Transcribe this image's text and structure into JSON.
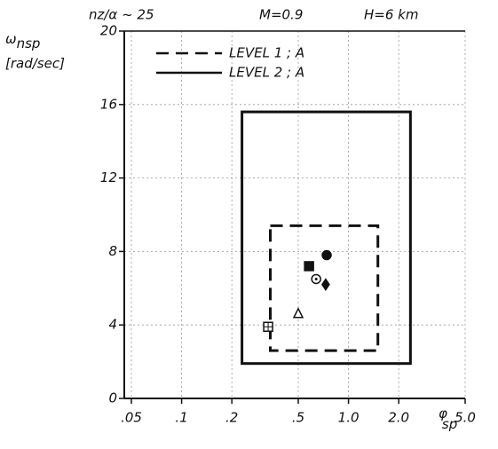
{
  "chart_data": {
    "type": "scatter",
    "title_parts": [
      "nz/α ~ 25",
      "M=0.9",
      "H=6  km"
    ],
    "y_label": {
      "symbol": "ω",
      "subscript": "nsp",
      "unit": "[rad/sec]"
    },
    "x_label": {
      "symbol": "φ",
      "subscript": "sp"
    },
    "xscale": "log",
    "xlim": [
      0.05,
      5.0
    ],
    "ylim": [
      0,
      20
    ],
    "xticks": [
      {
        "value": 0.05,
        "label": ".05"
      },
      {
        "value": 0.1,
        "label": ".1"
      },
      {
        "value": 0.2,
        "label": ".2"
      },
      {
        "value": 0.5,
        "label": ".5"
      },
      {
        "value": 1.0,
        "label": "1.0"
      },
      {
        "value": 2.0,
        "label": "2.0"
      },
      {
        "value": 5.0,
        "label": "5.0"
      }
    ],
    "yticks": [
      0,
      4,
      8,
      12,
      16,
      20
    ],
    "grid": true,
    "boundaries": [
      {
        "name": "LEVEL 1 ; A",
        "dashed": true,
        "x_range": [
          0.34,
          1.5
        ],
        "y_range": [
          2.6,
          9.4
        ]
      },
      {
        "name": "LEVEL 2 ; A",
        "dashed": false,
        "x_range": [
          0.23,
          2.35
        ],
        "y_range": [
          1.9,
          15.6
        ]
      }
    ],
    "points": [
      {
        "marker": "filled-circle",
        "x": 0.74,
        "y": 7.8
      },
      {
        "marker": "filled-square",
        "x": 0.58,
        "y": 7.2
      },
      {
        "marker": "dotted-circle",
        "x": 0.64,
        "y": 6.5
      },
      {
        "marker": "filled-diamond",
        "x": 0.73,
        "y": 6.2
      },
      {
        "marker": "open-triangle",
        "x": 0.5,
        "y": 4.6
      },
      {
        "marker": "crossed-square",
        "x": 0.33,
        "y": 3.9
      }
    ]
  }
}
